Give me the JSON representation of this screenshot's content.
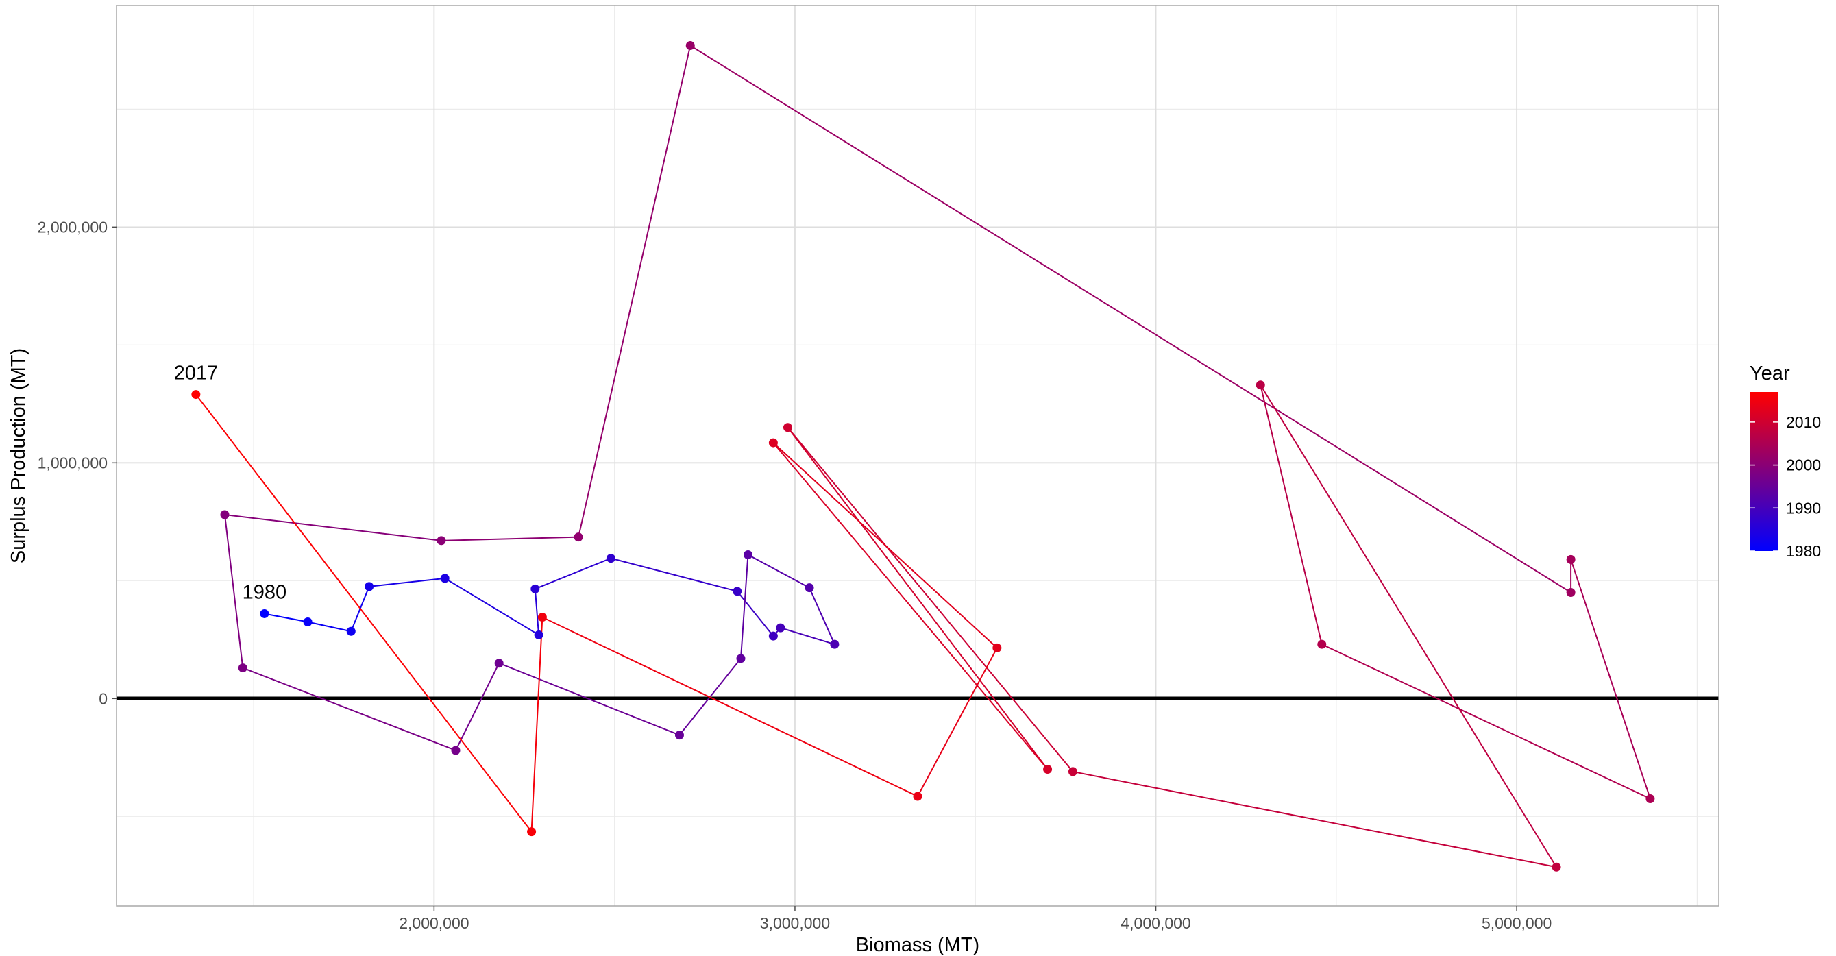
{
  "chart_data": {
    "type": "line",
    "xlabel": "Biomass (MT)",
    "ylabel": "Surplus Production (MT)",
    "xlim": [
      1120000,
      5560000
    ],
    "ylim": [
      -880000,
      2940000
    ],
    "x_ticks": [
      2000000,
      3000000,
      4000000,
      5000000
    ],
    "x_tick_labels": [
      "2,000,000",
      "3,000,000",
      "4,000,000",
      "5,000,000"
    ],
    "y_ticks": [
      0,
      1000000,
      2000000
    ],
    "y_tick_labels": [
      "0",
      "1,000,000",
      "2,000,000"
    ],
    "grid": true,
    "hline": {
      "y": 0,
      "color": "#000000"
    },
    "annotations": [
      {
        "text": "1980",
        "x": 1530000,
        "y": 360000
      },
      {
        "text": "2017",
        "x": 1340000,
        "y": 1290000
      }
    ],
    "legend": {
      "title": "Year",
      "placement": "right",
      "ticks": [
        1980,
        1990,
        2000,
        2010
      ],
      "tick_labels": [
        "1980",
        "1990",
        "2000",
        "2010"
      ],
      "range": [
        1980,
        2017
      ],
      "low_color": "#0000ff",
      "high_color": "#ff0000"
    },
    "points": [
      {
        "year": 1980,
        "x": 1530000,
        "y": 360000
      },
      {
        "year": 1981,
        "x": 1650000,
        "y": 325000
      },
      {
        "year": 1982,
        "x": 1770000,
        "y": 285000
      },
      {
        "year": 1983,
        "x": 1820000,
        "y": 475000
      },
      {
        "year": 1984,
        "x": 2030000,
        "y": 510000
      },
      {
        "year": 1985,
        "x": 2290000,
        "y": 270000
      },
      {
        "year": 1986,
        "x": 2280000,
        "y": 465000
      },
      {
        "year": 1987,
        "x": 2490000,
        "y": 595000
      },
      {
        "year": 1988,
        "x": 2840000,
        "y": 455000
      },
      {
        "year": 1989,
        "x": 2940000,
        "y": 265000
      },
      {
        "year": 1990,
        "x": 2960000,
        "y": 300000
      },
      {
        "year": 1991,
        "x": 3110000,
        "y": 230000
      },
      {
        "year": 1992,
        "x": 3040000,
        "y": 470000
      },
      {
        "year": 1993,
        "x": 2870000,
        "y": 610000
      },
      {
        "year": 1994,
        "x": 2850000,
        "y": 170000
      },
      {
        "year": 1995,
        "x": 2680000,
        "y": -155000
      },
      {
        "year": 1996,
        "x": 2180000,
        "y": 150000
      },
      {
        "year": 1997,
        "x": 2060000,
        "y": -220000
      },
      {
        "year": 1998,
        "x": 1470000,
        "y": 130000
      },
      {
        "year": 1999,
        "x": 1420000,
        "y": 780000
      },
      {
        "year": 2000,
        "x": 2020000,
        "y": 670000
      },
      {
        "year": 2001,
        "x": 2400000,
        "y": 685000
      },
      {
        "year": 2002,
        "x": 2710000,
        "y": 2770000
      },
      {
        "year": 2003,
        "x": 5150000,
        "y": 450000
      },
      {
        "year": 2004,
        "x": 5150000,
        "y": 590000
      },
      {
        "year": 2005,
        "x": 5370000,
        "y": -425000
      },
      {
        "year": 2006,
        "x": 4460000,
        "y": 230000
      },
      {
        "year": 2007,
        "x": 4290000,
        "y": 1330000
      },
      {
        "year": 2008,
        "x": 5110000,
        "y": -715000
      },
      {
        "year": 2009,
        "x": 3770000,
        "y": -310000
      },
      {
        "year": 2010,
        "x": 2980000,
        "y": 1150000
      },
      {
        "year": 2011,
        "x": 3700000,
        "y": -300000
      },
      {
        "year": 2012,
        "x": 2940000,
        "y": 1085000
      },
      {
        "year": 2013,
        "x": 3560000,
        "y": 215000
      },
      {
        "year": 2014,
        "x": 3340000,
        "y": -415000
      },
      {
        "year": 2015,
        "x": 2300000,
        "y": 345000
      },
      {
        "year": 2016,
        "x": 2270000,
        "y": -565000
      },
      {
        "year": 2017,
        "x": 1340000,
        "y": 1290000
      }
    ]
  }
}
